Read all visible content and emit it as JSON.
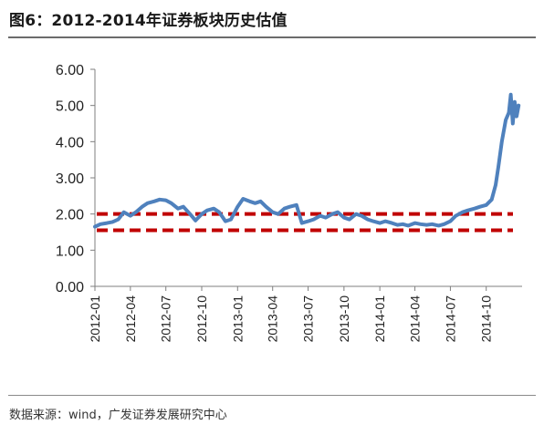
{
  "figure": {
    "title": "图6：2012-2014年证券板块历史估值",
    "source": "数据来源：wind，广发证券发展研究中心"
  },
  "colors": {
    "series": "#4f81bd",
    "bands": "#c00000",
    "axis": "#7f7f7f"
  },
  "chart_data": {
    "type": "line",
    "title": "",
    "xlabel": "",
    "ylabel": "",
    "ylim": [
      0,
      6
    ],
    "y_ticks": [
      "0.00",
      "1.00",
      "2.00",
      "3.00",
      "4.00",
      "5.00",
      "6.00"
    ],
    "x_ticks": [
      "2012-01",
      "2012-04",
      "2012-07",
      "2012-10",
      "2013-01",
      "2013-04",
      "2013-07",
      "2013-10",
      "2014-01",
      "2014-04",
      "2014-07",
      "2014-10"
    ],
    "x_range": [
      "2012-01",
      "2014-12"
    ],
    "grid": false,
    "legend": "none",
    "reference_lines": [
      {
        "y": 2.0,
        "style": "dashed"
      },
      {
        "y": 1.55,
        "style": "dashed"
      }
    ],
    "series": [
      {
        "points": [
          [
            "2012-01",
            1.65
          ],
          [
            "2012-01-15",
            1.72
          ],
          [
            "2012-02",
            1.75
          ],
          [
            "2012-02-15",
            1.78
          ],
          [
            "2012-03",
            1.85
          ],
          [
            "2012-03-15",
            2.05
          ],
          [
            "2012-04",
            1.95
          ],
          [
            "2012-04-15",
            2.05
          ],
          [
            "2012-05",
            2.2
          ],
          [
            "2012-05-15",
            2.3
          ],
          [
            "2012-06",
            2.35
          ],
          [
            "2012-06-15",
            2.4
          ],
          [
            "2012-07",
            2.38
          ],
          [
            "2012-07-15",
            2.3
          ],
          [
            "2012-08",
            2.15
          ],
          [
            "2012-08-15",
            2.2
          ],
          [
            "2012-09",
            2.0
          ],
          [
            "2012-09-15",
            1.82
          ],
          [
            "2012-10",
            2.0
          ],
          [
            "2012-10-15",
            2.1
          ],
          [
            "2012-11",
            2.15
          ],
          [
            "2012-11-15",
            2.05
          ],
          [
            "2012-12",
            1.8
          ],
          [
            "2012-12-15",
            1.85
          ],
          [
            "2013-01",
            2.2
          ],
          [
            "2013-01-15",
            2.42
          ],
          [
            "2013-02",
            2.35
          ],
          [
            "2013-02-15",
            2.3
          ],
          [
            "2013-03",
            2.35
          ],
          [
            "2013-03-15",
            2.2
          ],
          [
            "2013-04",
            2.05
          ],
          [
            "2013-04-15",
            2.0
          ],
          [
            "2013-05",
            2.15
          ],
          [
            "2013-05-15",
            2.2
          ],
          [
            "2013-06",
            2.25
          ],
          [
            "2013-06-15",
            1.75
          ],
          [
            "2013-07",
            1.8
          ],
          [
            "2013-07-15",
            1.85
          ],
          [
            "2013-08",
            1.95
          ],
          [
            "2013-08-15",
            1.9
          ],
          [
            "2013-09",
            2.0
          ],
          [
            "2013-09-15",
            2.05
          ],
          [
            "2013-10",
            1.9
          ],
          [
            "2013-10-15",
            1.85
          ],
          [
            "2013-11",
            2.0
          ],
          [
            "2013-11-15",
            1.95
          ],
          [
            "2013-12",
            1.85
          ],
          [
            "2013-12-15",
            1.8
          ],
          [
            "2014-01",
            1.75
          ],
          [
            "2014-01-15",
            1.8
          ],
          [
            "2014-02",
            1.75
          ],
          [
            "2014-02-15",
            1.7
          ],
          [
            "2014-03",
            1.72
          ],
          [
            "2014-03-15",
            1.68
          ],
          [
            "2014-04",
            1.75
          ],
          [
            "2014-04-15",
            1.72
          ],
          [
            "2014-05",
            1.7
          ],
          [
            "2014-05-15",
            1.72
          ],
          [
            "2014-06",
            1.68
          ],
          [
            "2014-06-15",
            1.72
          ],
          [
            "2014-07",
            1.8
          ],
          [
            "2014-07-15",
            1.95
          ],
          [
            "2014-08",
            2.05
          ],
          [
            "2014-08-15",
            2.1
          ],
          [
            "2014-09",
            2.15
          ],
          [
            "2014-09-15",
            2.2
          ],
          [
            "2014-10",
            2.25
          ],
          [
            "2014-10-15",
            2.4
          ],
          [
            "2014-10-25",
            2.8
          ],
          [
            "2014-11",
            3.3
          ],
          [
            "2014-11-10",
            4.0
          ],
          [
            "2014-11-20",
            4.6
          ],
          [
            "2014-11-28",
            4.8
          ],
          [
            "2014-12-03",
            5.3
          ],
          [
            "2014-12-08",
            4.5
          ],
          [
            "2014-12-13",
            5.1
          ],
          [
            "2014-12-18",
            4.7
          ],
          [
            "2014-12-23",
            5.0
          ]
        ]
      }
    ]
  }
}
